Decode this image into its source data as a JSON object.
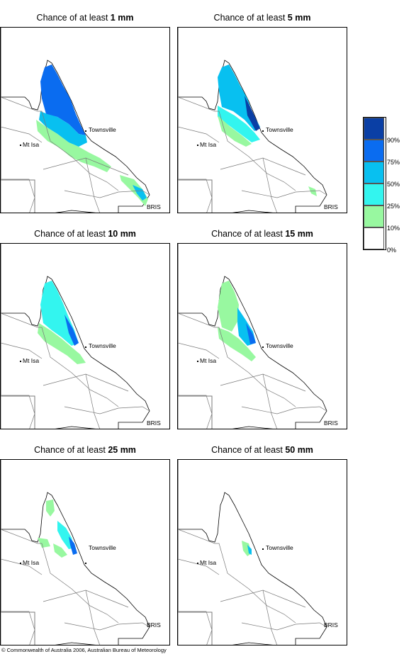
{
  "panels": [
    {
      "prefix": "Chance of at least ",
      "amount": "1 mm",
      "level": 1
    },
    {
      "prefix": "Chance of at least ",
      "amount": "5 mm",
      "level": 2
    },
    {
      "prefix": "Chance of at least ",
      "amount": "10 mm",
      "level": 3
    },
    {
      "prefix": "Chance of at least ",
      "amount": "15 mm",
      "level": 4
    },
    {
      "prefix": "Chance of at least ",
      "amount": "25 mm",
      "level": 5
    },
    {
      "prefix": "Chance of at least ",
      "amount": "50 mm",
      "level": 6
    }
  ],
  "places": {
    "townsville": "Townsville",
    "mt_isa": "Mt Isa",
    "bris": "BRIS"
  },
  "legend": {
    "labels": [
      "90%",
      "75%",
      "50%",
      "25%",
      "10%",
      "0%"
    ],
    "colors": [
      "#0a3fa5",
      "#0a6cf0",
      "#08c0f0",
      "#33f5ef",
      "#98f8a0",
      "#ffffff"
    ]
  },
  "copyright": "© Commonwealth of Australia 2006, Australian Bureau of Meteorology"
}
